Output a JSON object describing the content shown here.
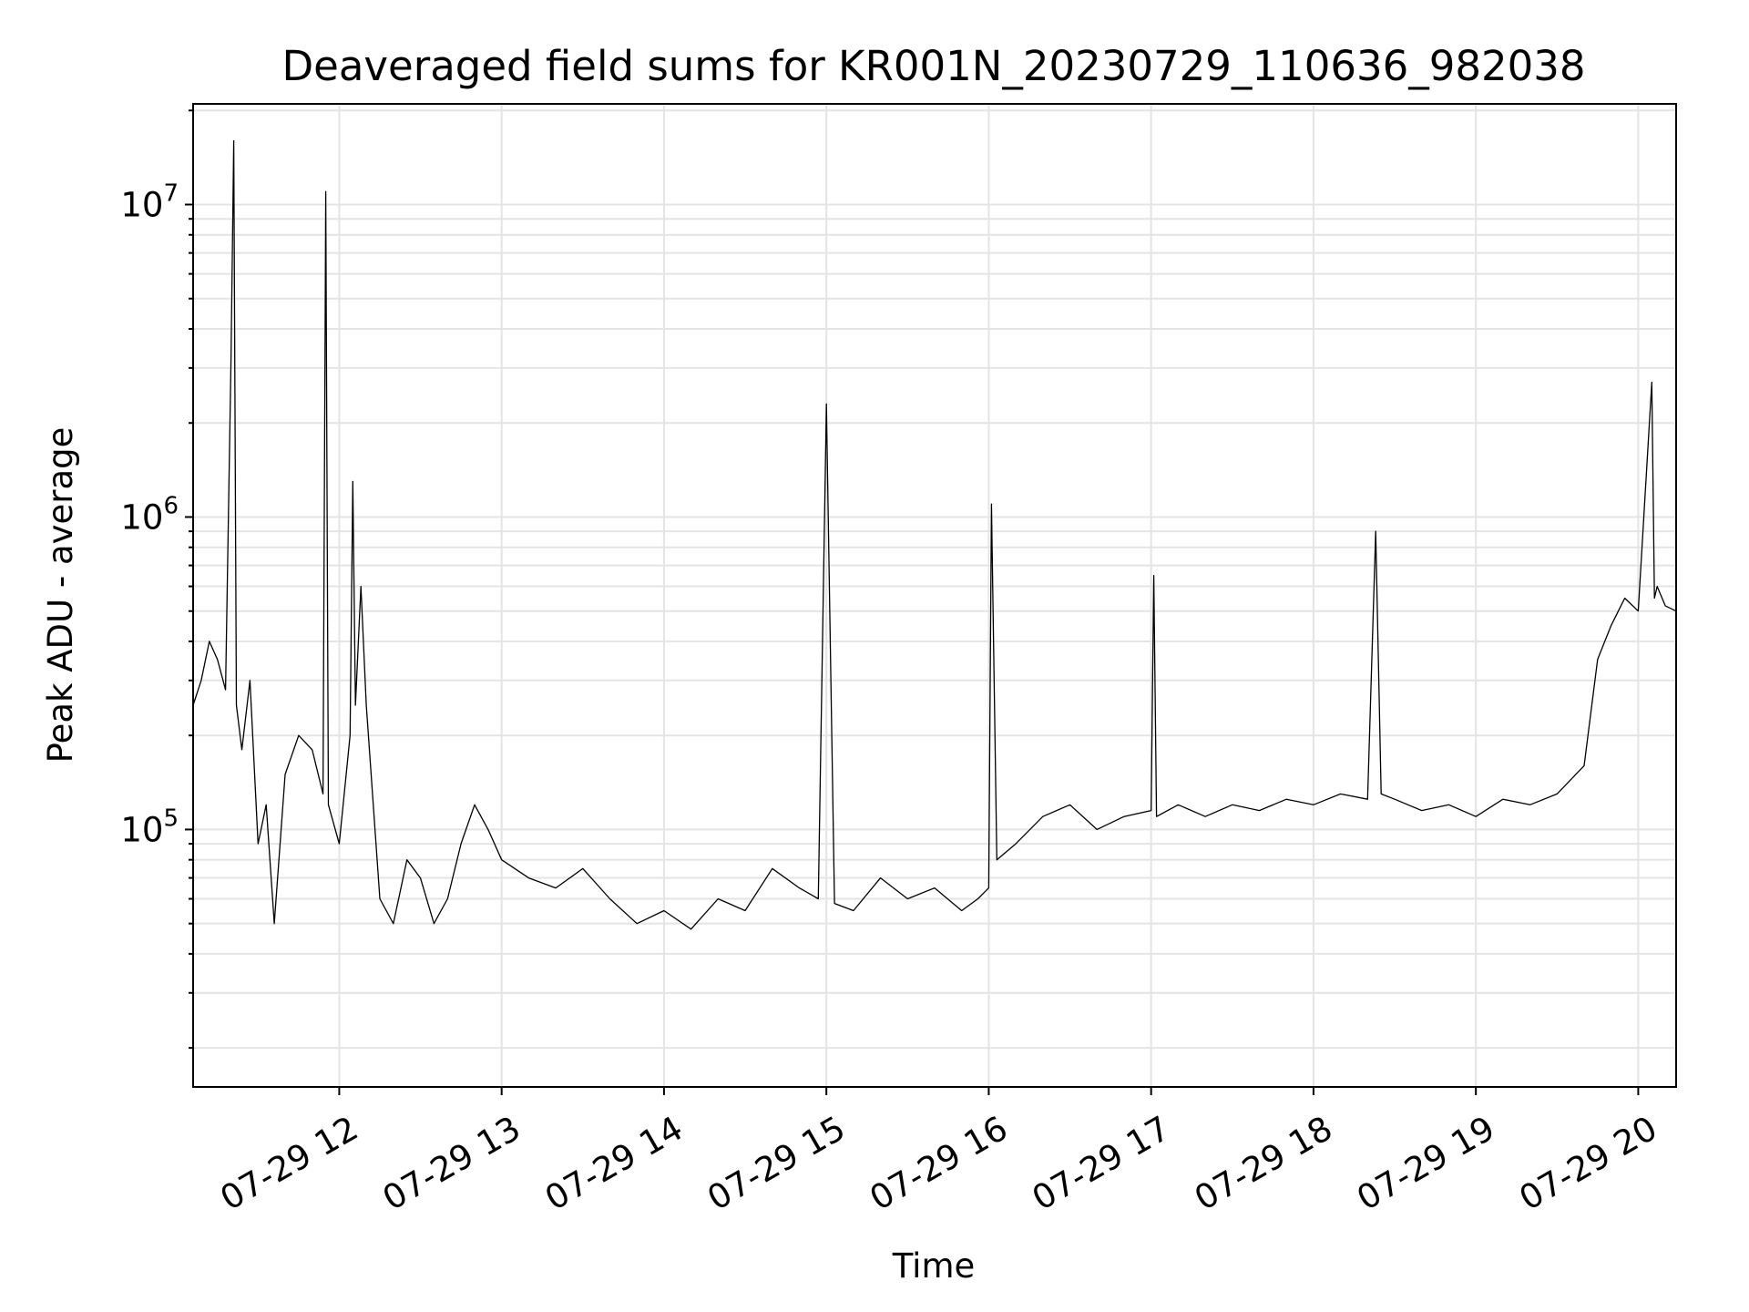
{
  "chart_data": {
    "type": "line",
    "title": "Deaveraged field sums for KR001N_20230729_110636_982038",
    "xlabel": "Time",
    "ylabel": "Peak ADU - average",
    "yscale": "log",
    "xlim": [
      "2023-07-29 11:06",
      "2023-07-29 20:14"
    ],
    "ylim": [
      15000,
      21000000
    ],
    "grid": true,
    "x_ticks": [
      {
        "value": "2023-07-29 12:00",
        "label": "07-29 12"
      },
      {
        "value": "2023-07-29 13:00",
        "label": "07-29 13"
      },
      {
        "value": "2023-07-29 14:00",
        "label": "07-29 14"
      },
      {
        "value": "2023-07-29 15:00",
        "label": "07-29 15"
      },
      {
        "value": "2023-07-29 16:00",
        "label": "07-29 16"
      },
      {
        "value": "2023-07-29 17:00",
        "label": "07-29 17"
      },
      {
        "value": "2023-07-29 18:00",
        "label": "07-29 18"
      },
      {
        "value": "2023-07-29 19:00",
        "label": "07-29 19"
      },
      {
        "value": "2023-07-29 20:00",
        "label": "07-29 20"
      }
    ],
    "y_ticks": [
      {
        "value": 100000,
        "base": "10",
        "exp": "5"
      },
      {
        "value": 1000000,
        "base": "10",
        "exp": "6"
      },
      {
        "value": 10000000,
        "base": "10",
        "exp": "7"
      }
    ],
    "series": [
      {
        "color": "#000000",
        "x": [
          "2023-07-29 11:06",
          "2023-07-29 11:09",
          "2023-07-29 11:12",
          "2023-07-29 11:15",
          "2023-07-29 11:18",
          "2023-07-29 11:20",
          "2023-07-29 11:21",
          "2023-07-29 11:22",
          "2023-07-29 11:24",
          "2023-07-29 11:27",
          "2023-07-29 11:30",
          "2023-07-29 11:33",
          "2023-07-29 11:36",
          "2023-07-29 11:40",
          "2023-07-29 11:45",
          "2023-07-29 11:50",
          "2023-07-29 11:54",
          "2023-07-29 11:55",
          "2023-07-29 11:56",
          "2023-07-29 12:00",
          "2023-07-29 12:04",
          "2023-07-29 12:05",
          "2023-07-29 12:06",
          "2023-07-29 12:08",
          "2023-07-29 12:10",
          "2023-07-29 12:15",
          "2023-07-29 12:20",
          "2023-07-29 12:25",
          "2023-07-29 12:30",
          "2023-07-29 12:35",
          "2023-07-29 12:40",
          "2023-07-29 12:45",
          "2023-07-29 12:50",
          "2023-07-29 12:55",
          "2023-07-29 13:00",
          "2023-07-29 13:10",
          "2023-07-29 13:20",
          "2023-07-29 13:30",
          "2023-07-29 13:40",
          "2023-07-29 13:50",
          "2023-07-29 14:00",
          "2023-07-29 14:10",
          "2023-07-29 14:20",
          "2023-07-29 14:30",
          "2023-07-29 14:40",
          "2023-07-29 14:50",
          "2023-07-29 14:57",
          "2023-07-29 15:00",
          "2023-07-29 15:03",
          "2023-07-29 15:10",
          "2023-07-29 15:20",
          "2023-07-29 15:30",
          "2023-07-29 15:40",
          "2023-07-29 15:50",
          "2023-07-29 15:56",
          "2023-07-29 16:00",
          "2023-07-29 16:01",
          "2023-07-29 16:03",
          "2023-07-29 16:10",
          "2023-07-29 16:20",
          "2023-07-29 16:30",
          "2023-07-29 16:40",
          "2023-07-29 16:50",
          "2023-07-29 17:00",
          "2023-07-29 17:01",
          "2023-07-29 17:02",
          "2023-07-29 17:10",
          "2023-07-29 17:20",
          "2023-07-29 17:30",
          "2023-07-29 17:40",
          "2023-07-29 17:50",
          "2023-07-29 18:00",
          "2023-07-29 18:10",
          "2023-07-29 18:20",
          "2023-07-29 18:23",
          "2023-07-29 18:25",
          "2023-07-29 18:30",
          "2023-07-29 18:40",
          "2023-07-29 18:50",
          "2023-07-29 19:00",
          "2023-07-29 19:10",
          "2023-07-29 19:20",
          "2023-07-29 19:30",
          "2023-07-29 19:40",
          "2023-07-29 19:45",
          "2023-07-29 19:50",
          "2023-07-29 19:55",
          "2023-07-29 20:00",
          "2023-07-29 20:05",
          "2023-07-29 20:06",
          "2023-07-29 20:07",
          "2023-07-29 20:10",
          "2023-07-29 20:14"
        ],
        "y": [
          250000,
          300000,
          400000,
          350000,
          280000,
          3200000,
          16000000,
          250000,
          180000,
          300000,
          90000,
          120000,
          50000,
          150000,
          200000,
          180000,
          130000,
          11000000,
          120000,
          90000,
          200000,
          1300000,
          250000,
          600000,
          250000,
          60000,
          50000,
          80000,
          70000,
          50000,
          60000,
          90000,
          120000,
          100000,
          80000,
          70000,
          65000,
          75000,
          60000,
          50000,
          55000,
          48000,
          60000,
          55000,
          75000,
          65000,
          60000,
          2300000,
          58000,
          55000,
          70000,
          60000,
          65000,
          55000,
          60000,
          65000,
          1100000,
          80000,
          90000,
          110000,
          120000,
          100000,
          110000,
          115000,
          650000,
          110000,
          120000,
          110000,
          120000,
          115000,
          125000,
          120000,
          130000,
          125000,
          900000,
          130000,
          125000,
          115000,
          120000,
          110000,
          125000,
          120000,
          130000,
          160000,
          350000,
          450000,
          550000,
          500000,
          2700000,
          550000,
          600000,
          520000,
          500000
        ]
      }
    ]
  }
}
